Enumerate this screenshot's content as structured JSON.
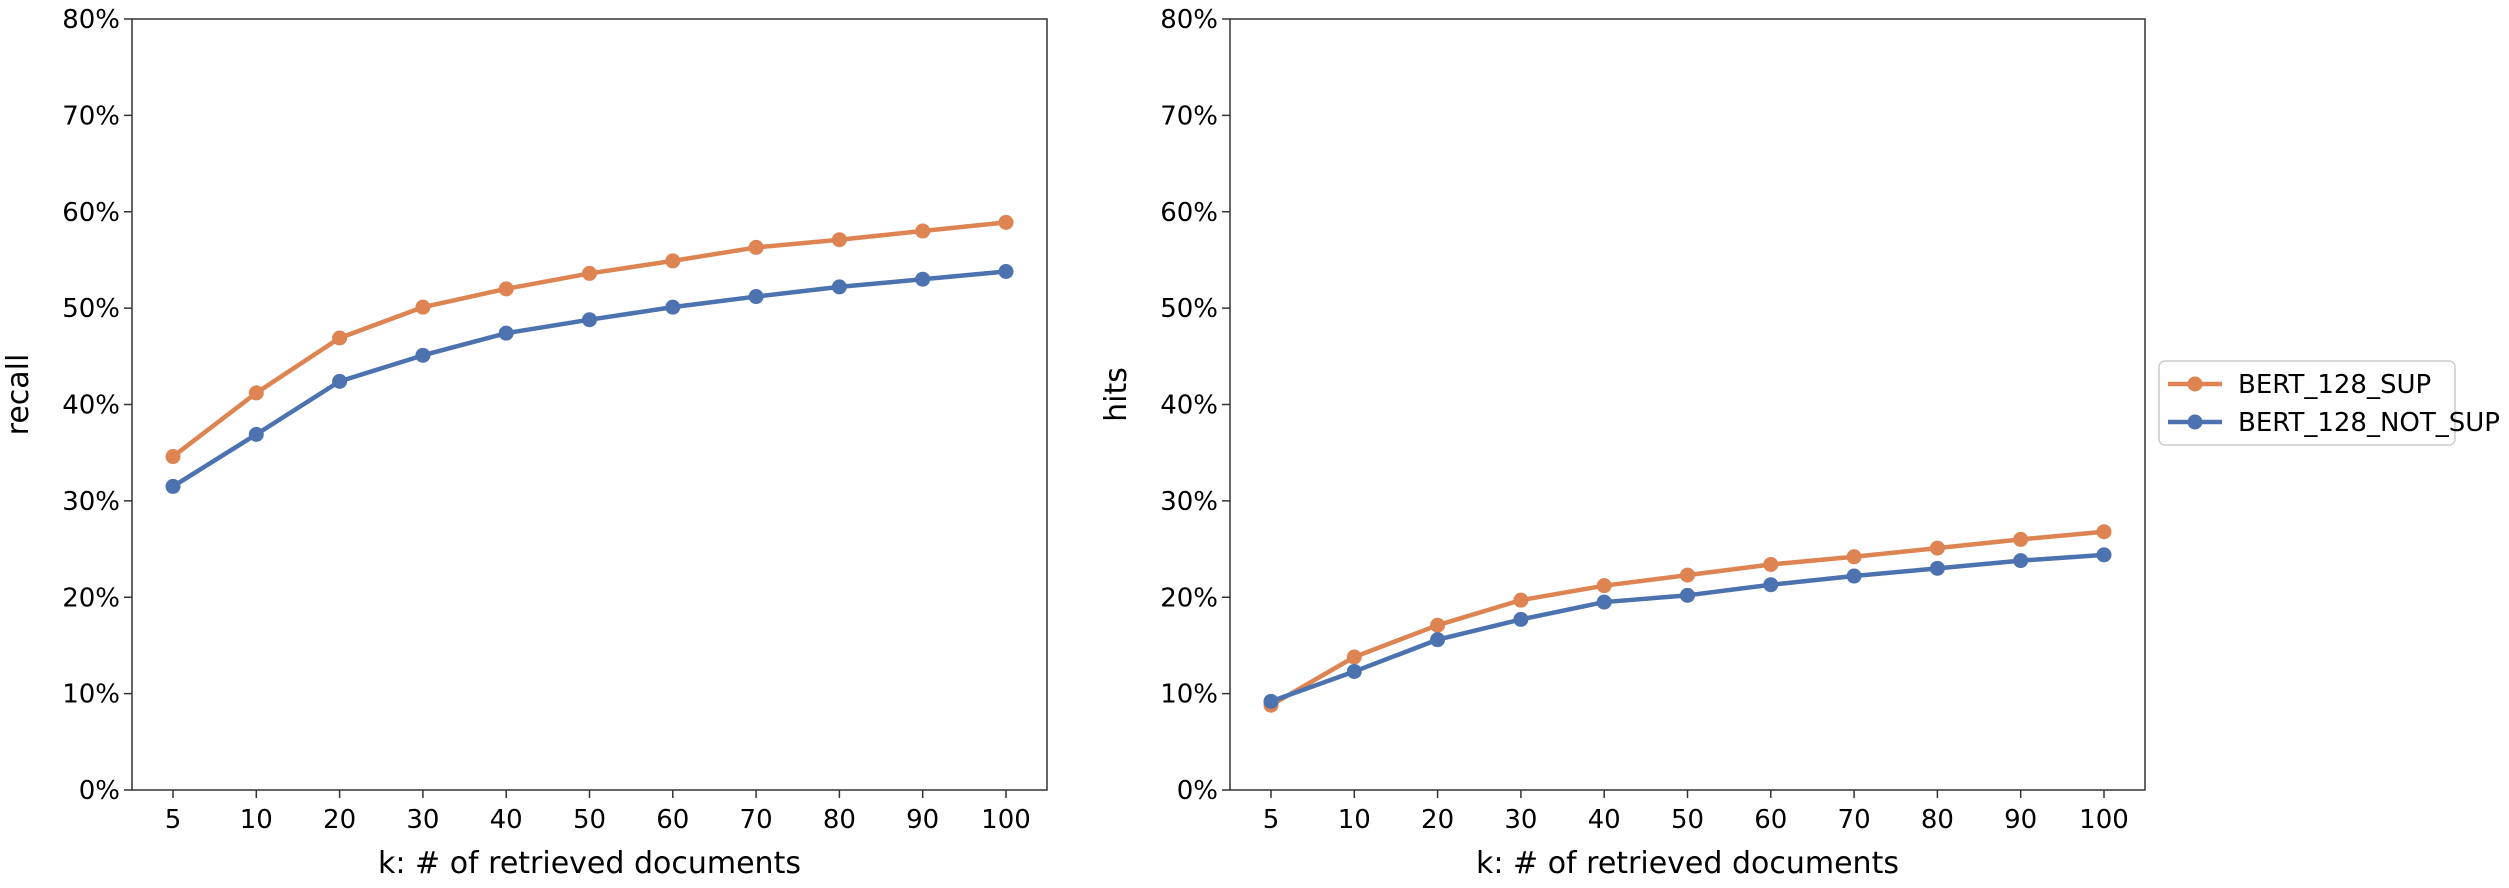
{
  "chart_data": [
    {
      "type": "line",
      "categories": [
        "5",
        "10",
        "20",
        "30",
        "40",
        "50",
        "60",
        "70",
        "80",
        "90",
        "100"
      ],
      "series": [
        {
          "name": "BERT_128_SUP",
          "color": "#dd8452",
          "values": [
            34.6,
            41.2,
            46.9,
            50.1,
            52.0,
            53.6,
            54.9,
            56.3,
            57.1,
            58.0,
            58.9
          ]
        },
        {
          "name": "BERT_128_NOT_SUP",
          "color": "#4c72b0",
          "values": [
            31.5,
            36.9,
            42.4,
            45.1,
            47.4,
            48.8,
            50.1,
            51.2,
            52.2,
            53.0,
            53.8
          ]
        }
      ],
      "xlabel": "k: # of retrieved documents",
      "ylabel": "recall",
      "ylim": [
        0,
        80
      ],
      "yticks": [
        "0%",
        "10%",
        "20%",
        "30%",
        "40%",
        "50%",
        "60%",
        "70%",
        "80%"
      ],
      "grid": false
    },
    {
      "type": "line",
      "categories": [
        "5",
        "10",
        "20",
        "30",
        "40",
        "50",
        "60",
        "70",
        "80",
        "90",
        "100"
      ],
      "series": [
        {
          "name": "BERT_128_SUP",
          "color": "#dd8452",
          "values": [
            8.8,
            13.8,
            17.1,
            19.7,
            21.2,
            22.3,
            23.4,
            24.2,
            25.1,
            26.0,
            26.8
          ]
        },
        {
          "name": "BERT_128_NOT_SUP",
          "color": "#4c72b0",
          "values": [
            9.2,
            12.3,
            15.6,
            17.7,
            19.5,
            20.2,
            21.3,
            22.2,
            23.0,
            23.8,
            24.4
          ]
        }
      ],
      "xlabel": "k: # of retrieved documents",
      "ylabel": "hits",
      "ylim": [
        0,
        80
      ],
      "yticks": [
        "0%",
        "10%",
        "20%",
        "30%",
        "40%",
        "50%",
        "60%",
        "70%",
        "80%"
      ],
      "grid": false
    }
  ],
  "legend": {
    "placement": "right",
    "entries": [
      {
        "label": "BERT_128_SUP",
        "color": "#dd8452"
      },
      {
        "label": "BERT_128_NOT_SUP",
        "color": "#4c72b0"
      }
    ]
  }
}
